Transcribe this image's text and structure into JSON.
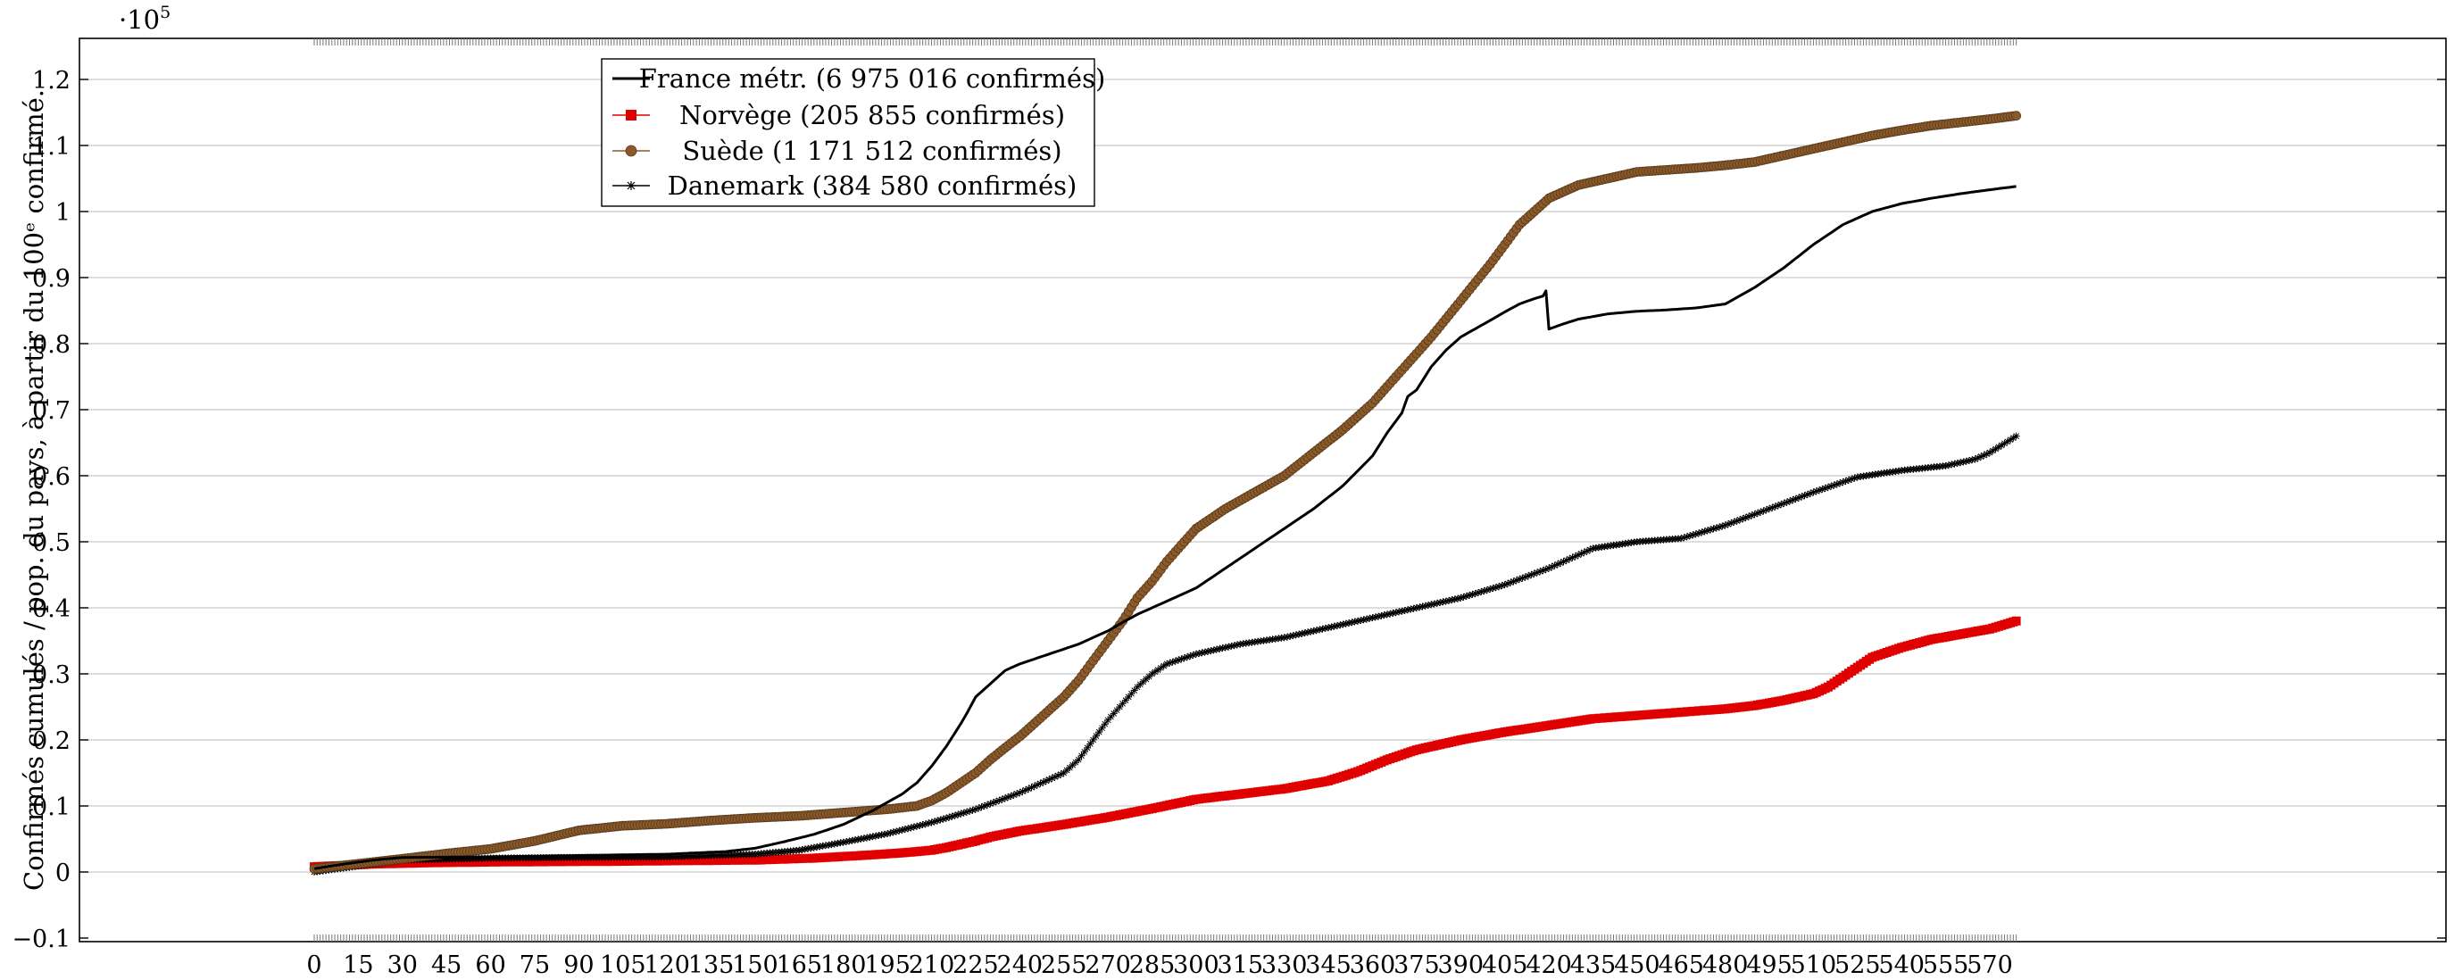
{
  "chart_data": {
    "type": "line",
    "title": "",
    "xlabel": "",
    "ylabel": "Confirmés cumulés / pop. du pays, à partir du 100ᵉ confirmé.",
    "y_multiplier_base": "·10",
    "y_multiplier_exp": "5",
    "xlim": [
      -10,
      584
    ],
    "ylim": [
      -0.1,
      1.25
    ],
    "x_ticks": [
      0,
      15,
      30,
      45,
      60,
      75,
      90,
      105,
      120,
      135,
      150,
      165,
      180,
      195,
      210,
      225,
      240,
      255,
      270,
      285,
      300,
      315,
      330,
      345,
      360,
      375,
      390,
      405,
      420,
      435,
      450,
      465,
      480,
      495,
      510,
      525,
      540,
      555,
      570
    ],
    "y_ticks": [
      -0.1,
      0,
      0.1,
      0.2,
      0.3,
      0.4,
      0.5,
      0.6,
      0.7,
      0.8,
      0.9,
      1,
      1.1,
      1.2
    ],
    "y_tick_labels": [
      "−0.1",
      "0",
      "0.1",
      "0.2",
      "0.3",
      "0.4",
      "0.5",
      "0.6",
      "0.7",
      "0.8",
      "0.9",
      "1",
      "1.1",
      "1.2"
    ],
    "grid": "horizontal",
    "legend_position": "top-left",
    "series": [
      {
        "name": "France métr. (6 975 016 confirmés)",
        "color": "#000000",
        "marker": "none",
        "x": [
          0,
          10,
          20,
          30,
          60,
          90,
          120,
          140,
          150,
          160,
          170,
          180,
          190,
          200,
          205,
          210,
          215,
          220,
          222,
          225,
          230,
          235,
          240,
          250,
          260,
          270,
          275,
          280,
          290,
          300,
          310,
          320,
          330,
          340,
          350,
          360,
          365,
          370,
          372,
          375,
          380,
          385,
          390,
          400,
          405,
          410,
          415,
          418,
          419,
          420,
          425,
          430,
          440,
          450,
          460,
          470,
          480,
          490,
          500,
          510,
          520,
          530,
          540,
          550,
          560,
          570,
          579
        ],
        "y": [
          0.005,
          0.012,
          0.018,
          0.022,
          0.023,
          0.025,
          0.027,
          0.031,
          0.036,
          0.046,
          0.057,
          0.072,
          0.093,
          0.118,
          0.135,
          0.16,
          0.19,
          0.225,
          0.24,
          0.265,
          0.285,
          0.305,
          0.315,
          0.33,
          0.345,
          0.365,
          0.378,
          0.39,
          0.41,
          0.43,
          0.46,
          0.49,
          0.52,
          0.55,
          0.585,
          0.63,
          0.665,
          0.695,
          0.72,
          0.73,
          0.765,
          0.79,
          0.81,
          0.835,
          0.848,
          0.86,
          0.868,
          0.872,
          0.88,
          0.822,
          0.83,
          0.837,
          0.845,
          0.849,
          0.851,
          0.854,
          0.86,
          0.885,
          0.915,
          0.95,
          0.98,
          1.0,
          1.012,
          1.02,
          1.027,
          1.033,
          1.038
        ]
      },
      {
        "name": "Norvège (205 855 confirmés)",
        "color": "#e00000",
        "marker": "square",
        "x": [
          0,
          20,
          40,
          60,
          100,
          150,
          170,
          190,
          200,
          210,
          215,
          220,
          225,
          230,
          240,
          255,
          270,
          285,
          300,
          315,
          330,
          345,
          355,
          365,
          375,
          390,
          405,
          420,
          435,
          450,
          465,
          480,
          490,
          500,
          510,
          515,
          520,
          525,
          530,
          540,
          550,
          560,
          570,
          579
        ],
        "y": [
          0.008,
          0.012,
          0.014,
          0.015,
          0.016,
          0.018,
          0.021,
          0.026,
          0.029,
          0.033,
          0.037,
          0.042,
          0.047,
          0.053,
          0.062,
          0.072,
          0.083,
          0.096,
          0.11,
          0.118,
          0.126,
          0.138,
          0.152,
          0.17,
          0.185,
          0.2,
          0.212,
          0.222,
          0.232,
          0.237,
          0.242,
          0.247,
          0.252,
          0.26,
          0.27,
          0.28,
          0.295,
          0.31,
          0.325,
          0.34,
          0.352,
          0.36,
          0.368,
          0.38
        ]
      },
      {
        "name": "Suède (1 171 512 confirmés)",
        "color": "#8b5a2b",
        "marker": "circle",
        "x": [
          0,
          10,
          20,
          30,
          45,
          60,
          75,
          90,
          105,
          120,
          135,
          150,
          165,
          180,
          195,
          205,
          210,
          215,
          220,
          225,
          230,
          235,
          240,
          245,
          250,
          255,
          260,
          265,
          270,
          275,
          280,
          285,
          290,
          300,
          310,
          320,
          330,
          340,
          350,
          360,
          370,
          380,
          390,
          400,
          405,
          410,
          415,
          420,
          430,
          440,
          450,
          460,
          470,
          480,
          490,
          500,
          510,
          520,
          530,
          540,
          550,
          560,
          570,
          579
        ],
        "y": [
          0.005,
          0.01,
          0.015,
          0.02,
          0.028,
          0.035,
          0.047,
          0.063,
          0.07,
          0.073,
          0.078,
          0.082,
          0.085,
          0.09,
          0.095,
          0.1,
          0.108,
          0.12,
          0.135,
          0.15,
          0.17,
          0.188,
          0.205,
          0.225,
          0.245,
          0.265,
          0.29,
          0.32,
          0.35,
          0.38,
          0.415,
          0.44,
          0.47,
          0.52,
          0.55,
          0.575,
          0.6,
          0.635,
          0.67,
          0.71,
          0.76,
          0.81,
          0.865,
          0.92,
          0.95,
          0.98,
          1.0,
          1.02,
          1.04,
          1.05,
          1.06,
          1.063,
          1.066,
          1.07,
          1.075,
          1.085,
          1.095,
          1.105,
          1.115,
          1.123,
          1.13,
          1.135,
          1.14,
          1.145
        ]
      },
      {
        "name": "Danemark (384 580 confirmés)",
        "color": "#000000",
        "marker": "star",
        "x": [
          0,
          30,
          60,
          90,
          120,
          150,
          165,
          180,
          195,
          210,
          225,
          240,
          255,
          260,
          265,
          270,
          275,
          280,
          285,
          290,
          300,
          315,
          330,
          345,
          360,
          375,
          390,
          405,
          420,
          435,
          450,
          465,
          480,
          495,
          510,
          525,
          540,
          555,
          565,
          570,
          579
        ],
        "y": [
          0.0,
          0.018,
          0.021,
          0.022,
          0.023,
          0.027,
          0.033,
          0.045,
          0.058,
          0.075,
          0.095,
          0.12,
          0.15,
          0.17,
          0.2,
          0.23,
          0.255,
          0.28,
          0.3,
          0.315,
          0.33,
          0.345,
          0.355,
          0.37,
          0.385,
          0.4,
          0.415,
          0.435,
          0.46,
          0.49,
          0.5,
          0.505,
          0.525,
          0.55,
          0.575,
          0.598,
          0.608,
          0.615,
          0.625,
          0.635,
          0.66
        ]
      }
    ]
  }
}
